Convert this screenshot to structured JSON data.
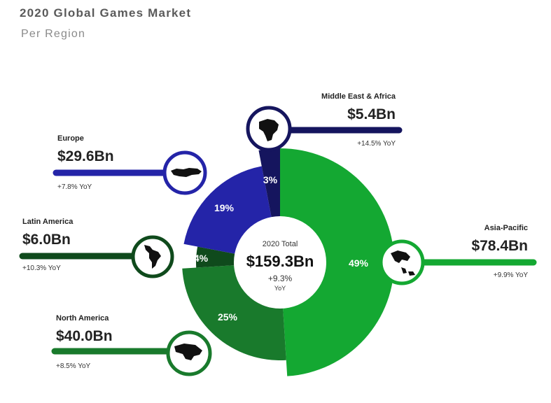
{
  "header": {
    "title": "2020 Global Games Market",
    "subtitle": "Per Region"
  },
  "chart_data": {
    "type": "pie",
    "title": "2020 Global Games Market",
    "subtitle": "Per Region",
    "center": {
      "label": "2020 Total",
      "total": "$159.3Bn",
      "growth": "+9.3%",
      "growth_unit": "YoY"
    },
    "slices": [
      {
        "name": "Asia-Pacific",
        "share": 49,
        "share_label": "49%",
        "value_bn": 78.4,
        "value_label": "$78.4Bn",
        "yoy": "+9.9% YoY",
        "color": "#14a832",
        "icon": "asia-pacific-map-icon"
      },
      {
        "name": "North America",
        "share": 25,
        "share_label": "25%",
        "value_bn": 40.0,
        "value_label": "$40.0Bn",
        "yoy": "+8.5% YoY",
        "color": "#197a2c",
        "icon": "north-america-map-icon"
      },
      {
        "name": "Latin America",
        "share": 4,
        "share_label": "4%",
        "value_bn": 6.0,
        "value_label": "$6.0Bn",
        "yoy": "+10.3% YoY",
        "color": "#0f4a1c",
        "icon": "latin-america-map-icon"
      },
      {
        "name": "Europe",
        "share": 19,
        "share_label": "19%",
        "value_bn": 29.6,
        "value_label": "$29.6Bn",
        "yoy": "+7.8% YoY",
        "color": "#2424a8",
        "icon": "europe-map-icon"
      },
      {
        "name": "Middle East & Africa",
        "share": 3,
        "share_label": "3%",
        "value_bn": 5.4,
        "value_label": "$5.4Bn",
        "yoy": "+14.5% YoY",
        "color": "#15155e",
        "icon": "africa-map-icon"
      }
    ]
  }
}
